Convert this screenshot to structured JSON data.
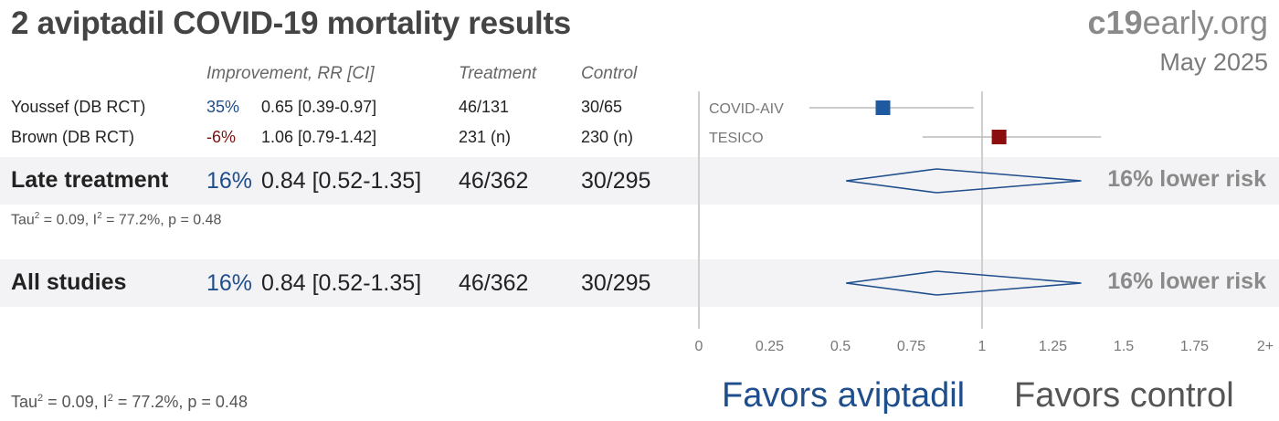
{
  "header": {
    "title": "2 aviptadil COVID-19 mortality results",
    "brand_bold": "c19",
    "brand_rest": "early.org",
    "date": "May 2025"
  },
  "columns": {
    "improvement": "Improvement, RR [CI]",
    "treatment": "Treatment",
    "control": "Control"
  },
  "studies": [
    {
      "name": "Youssef (DB RCT)",
      "improvement": "35%",
      "rr_ci": "0.65 [0.39-0.97]",
      "treatment": "46/131",
      "control": "30/65",
      "trial": "COVID-AIV"
    },
    {
      "name": "Brown (DB RCT)",
      "improvement": "-6%",
      "rr_ci": "1.06 [0.79-1.42]",
      "treatment": "231 (n)",
      "control": "230 (n)",
      "trial": "TESICO"
    }
  ],
  "subgroup": {
    "name": "Late treatment",
    "improvement": "16%",
    "rr_ci": "0.84 [0.52-1.35]",
    "treatment": "46/362",
    "control": "30/295",
    "effect_text": "16% lower risk",
    "stats": {
      "tau_label": "Tau",
      "tau_sup": "2",
      "tau_val": " = 0.09, I",
      "i_sup": "2",
      "rest": " = 77.2%, p = 0.48"
    }
  },
  "overall": {
    "name": "All studies",
    "improvement": "16%",
    "rr_ci": "0.84 [0.52-1.35]",
    "treatment": "46/362",
    "control": "30/295",
    "effect_text": "16% lower risk",
    "stats": {
      "tau_label": "Tau",
      "tau_sup": "2",
      "tau_val": " = 0.09, I",
      "i_sup": "2",
      "rest": " = 77.2%, p = 0.48"
    }
  },
  "favors": {
    "left": "Favors aviptadil",
    "right": "Favors control"
  },
  "colors": {
    "blue": "#1f4e8c",
    "red": "#7a1010",
    "grey": "#8a8a8a"
  },
  "chart_data": {
    "type": "forest",
    "xlim": [
      0,
      2
    ],
    "tick_labels": [
      "0",
      "0.25",
      "0.5",
      "0.75",
      "1",
      "1.25",
      "1.5",
      "1.75",
      "2+"
    ],
    "tick_values": [
      0,
      0.25,
      0.5,
      0.75,
      1,
      1.25,
      1.5,
      1.75,
      2
    ],
    "reference_line": 1,
    "studies": [
      {
        "label": "COVID-AIV",
        "rr": 0.65,
        "lo": 0.39,
        "hi": 0.97,
        "color": "#1f5aa0"
      },
      {
        "label": "TESICO",
        "rr": 1.06,
        "lo": 0.79,
        "hi": 1.42,
        "color": "#8b0f0f"
      }
    ],
    "summaries": [
      {
        "label": "Late treatment",
        "rr": 0.84,
        "lo": 0.52,
        "hi": 1.35
      },
      {
        "label": "All studies",
        "rr": 0.84,
        "lo": 0.52,
        "hi": 1.35
      }
    ]
  }
}
